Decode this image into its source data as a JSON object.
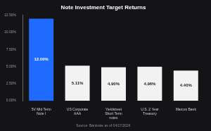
{
  "chart_data": {
    "type": "bar",
    "title": "Note Investment Target Returns",
    "annotations": [
      "Source: Bankrate as of 04/17/2024"
    ],
    "categories": [
      "5V Mid Term Note I",
      "US Corporate AAA",
      "Yieldstreet Short Term notes",
      "U.S. 2 Year Treasury",
      "Marcus Bank"
    ],
    "values": [
      12.0,
      5.11,
      4.9,
      4.96,
      4.4
    ],
    "value_labels": [
      "12.00%",
      "5.11%",
      "4.90%",
      "4.96%",
      "4.40%"
    ],
    "data_labels": true,
    "colors": [
      "#1f6bff",
      "#f2f2f2",
      "#f2f2f2",
      "#f2f2f2",
      "#f2f2f2"
    ],
    "ylim": [
      0,
      12.5
    ],
    "yticks": [
      {
        "value": 0,
        "label": "0.00%"
      },
      {
        "value": 2.5,
        "label": "2.50%"
      },
      {
        "value": 5,
        "label": "5.00%"
      },
      {
        "value": 7.5,
        "label": "7.50%"
      },
      {
        "value": 10,
        "label": "10.00%"
      },
      {
        "value": 12.5,
        "label": "12.50%"
      }
    ],
    "grid": false
  }
}
